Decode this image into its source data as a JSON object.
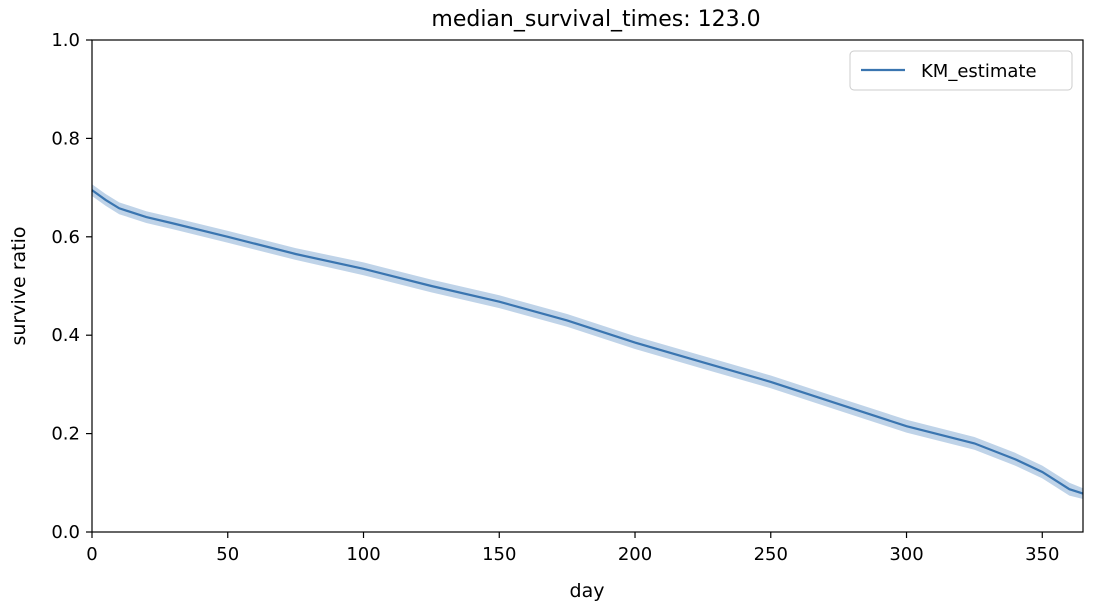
{
  "chart_data": {
    "type": "line",
    "title": "median_survival_times: 123.0",
    "xlabel": "day",
    "ylabel": "survive ratio",
    "xlim": [
      0,
      365
    ],
    "ylim": [
      0.0,
      1.0
    ],
    "xticks": [
      0,
      50,
      100,
      150,
      200,
      250,
      300,
      350
    ],
    "xtick_labels": [
      "0",
      "50",
      "100",
      "150",
      "200",
      "250",
      "300",
      "350"
    ],
    "yticks": [
      0.0,
      0.2,
      0.4,
      0.6,
      0.8,
      1.0
    ],
    "ytick_labels": [
      "0.0",
      "0.2",
      "0.4",
      "0.6",
      "0.8",
      "1.0"
    ],
    "grid": false,
    "legend_placement": "top-right",
    "series": [
      {
        "name": "KM_estimate",
        "color": "#3a75b0",
        "band_color": "#a9c4e0",
        "x": [
          0,
          5,
          10,
          20,
          30,
          50,
          75,
          100,
          125,
          150,
          175,
          200,
          225,
          250,
          275,
          300,
          325,
          340,
          350,
          360,
          365
        ],
        "y": [
          0.695,
          0.675,
          0.658,
          0.64,
          0.627,
          0.6,
          0.565,
          0.535,
          0.5,
          0.468,
          0.43,
          0.385,
          0.345,
          0.305,
          0.26,
          0.215,
          0.18,
          0.148,
          0.122,
          0.087,
          0.078
        ],
        "ci_lower": [
          0.683,
          0.663,
          0.646,
          0.628,
          0.615,
          0.588,
          0.553,
          0.522,
          0.487,
          0.455,
          0.417,
          0.372,
          0.332,
          0.292,
          0.247,
          0.202,
          0.167,
          0.135,
          0.109,
          0.074,
          0.067
        ],
        "ci_upper": [
          0.707,
          0.687,
          0.67,
          0.652,
          0.639,
          0.612,
          0.577,
          0.548,
          0.513,
          0.481,
          0.443,
          0.398,
          0.358,
          0.318,
          0.273,
          0.228,
          0.193,
          0.161,
          0.135,
          0.1,
          0.089
        ]
      }
    ]
  }
}
